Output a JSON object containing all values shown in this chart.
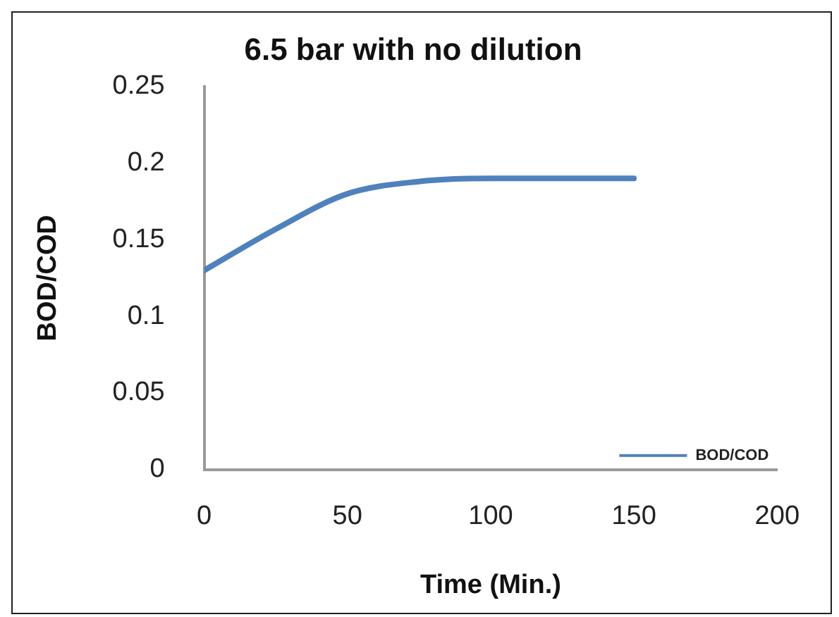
{
  "chart_data": {
    "type": "line",
    "title": "6.5 bar with no dilution",
    "xlabel": "Time (Min.)",
    "ylabel": "BOD/COD",
    "x": [
      0,
      25,
      50,
      75,
      100,
      125,
      150
    ],
    "series": [
      {
        "name": "BOD/COD",
        "color": "#4f81bd",
        "values": [
          0.13,
          0.157,
          0.18,
          0.188,
          0.19,
          0.19,
          0.19
        ]
      }
    ],
    "xlim": [
      0,
      200
    ],
    "xticks": [
      0,
      50,
      100,
      150,
      200
    ],
    "ylim": [
      0,
      0.25
    ],
    "yticks": [
      0,
      0.05,
      0.1,
      0.15,
      0.2,
      0.25
    ],
    "grid": false,
    "legend": "bottom right",
    "marker": "none",
    "line_style": "solid"
  }
}
